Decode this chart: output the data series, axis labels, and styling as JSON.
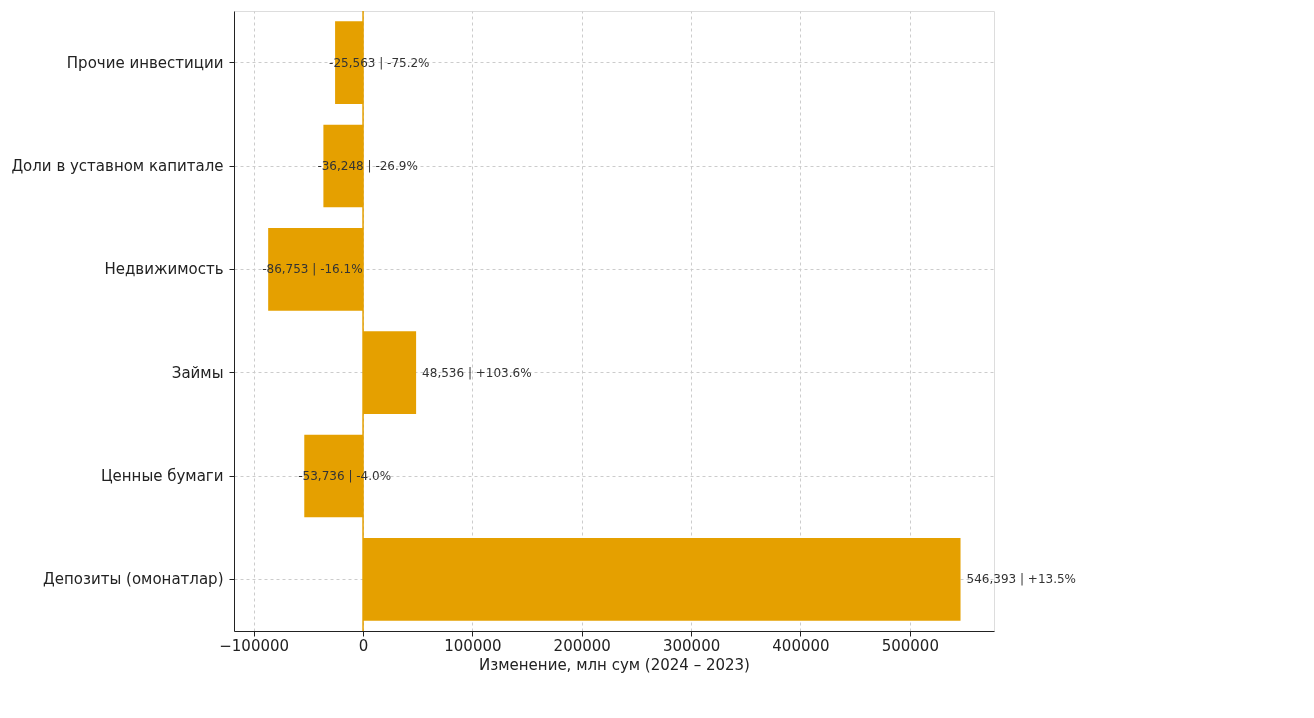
{
  "chart_data": {
    "type": "bar",
    "orientation": "horizontal",
    "xlabel": "Изменение, млн сум (2024 – 2023)",
    "categories": [
      "Прочие инвестиции",
      "Доли в уставном капитале",
      "Недвижимость",
      "Займы",
      "Ценные бумаги",
      "Депозиты (омонатлар)"
    ],
    "values": [
      -25563,
      -36248,
      -86753,
      48536,
      -53736,
      546393
    ],
    "color": "#e5a000",
    "value_labels": [
      "-25,563  |  -75.2%",
      "-36,248  |  -26.9%",
      "-86,753  |  -16.1%",
      "48,536  |  +103.6%",
      "-53,736  |  -4.0%",
      "546,393  |  +13.5%"
    ],
    "xlim": [
      -118000,
      577000
    ],
    "xticks": [
      {
        "value": -100000,
        "label": "−100000"
      },
      0,
      100000,
      200000,
      300000,
      400000,
      500000
    ],
    "ref_lines": [
      {
        "axis": "x",
        "value": 0,
        "color": "#e5a000"
      }
    ],
    "grid": true
  }
}
